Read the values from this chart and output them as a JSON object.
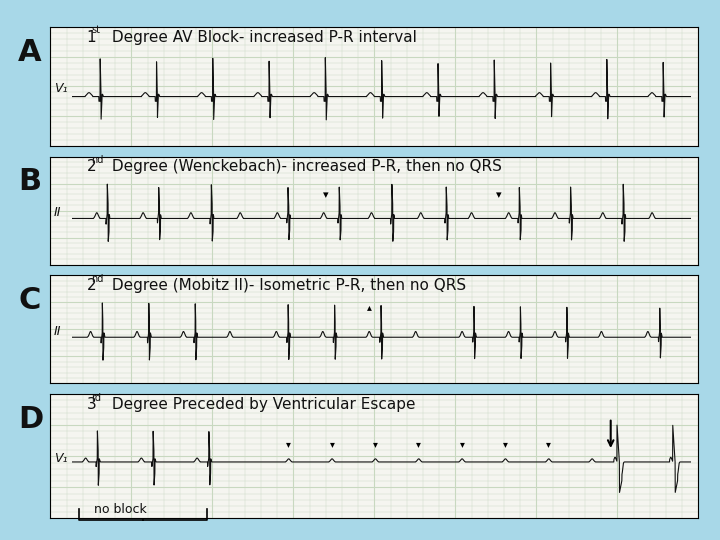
{
  "background_color": "#a8d8e8",
  "panel_bg": "#f5f5f0",
  "panel_border": "#cccccc",
  "text_color": "#111111",
  "panels": [
    {
      "label": "A",
      "lead_label": "V₁",
      "title": "1ˢᵗ Degree AV Block- increased P-R interval",
      "title_super": "st",
      "title_base": "1",
      "title_rest": " Degree AV Block- increased P-R interval"
    },
    {
      "label": "B",
      "lead_label": "II",
      "title": "2ⁿᵈ Degree (Wenckebach)- increased P-R, then no QRS",
      "title_super": "nd",
      "title_base": "2",
      "title_rest": " Degree (Wenckebach)- increased P-R, then no QRS"
    },
    {
      "label": "C",
      "lead_label": "II",
      "title": "2ⁿᵈ Degree (Mobitz II)- Isometric P-R, then no QRS",
      "title_super": "nd",
      "title_base": "2",
      "title_rest": " Degree (Mobitz II)- Isometric P-R, then no QRS"
    },
    {
      "label": "D",
      "lead_label": "V₁",
      "title": "3ʳᵈ Degree Preceded by Ventricular Escape",
      "title_super": "rd",
      "title_base": "3",
      "title_rest": " Degree Preceded by Ventricular Escape",
      "extra_label": "no block"
    }
  ],
  "grid_color": "#c8d8c0",
  "ecg_color": "#111111",
  "font_size_label": 22,
  "font_size_title": 11,
  "font_size_lead": 9
}
